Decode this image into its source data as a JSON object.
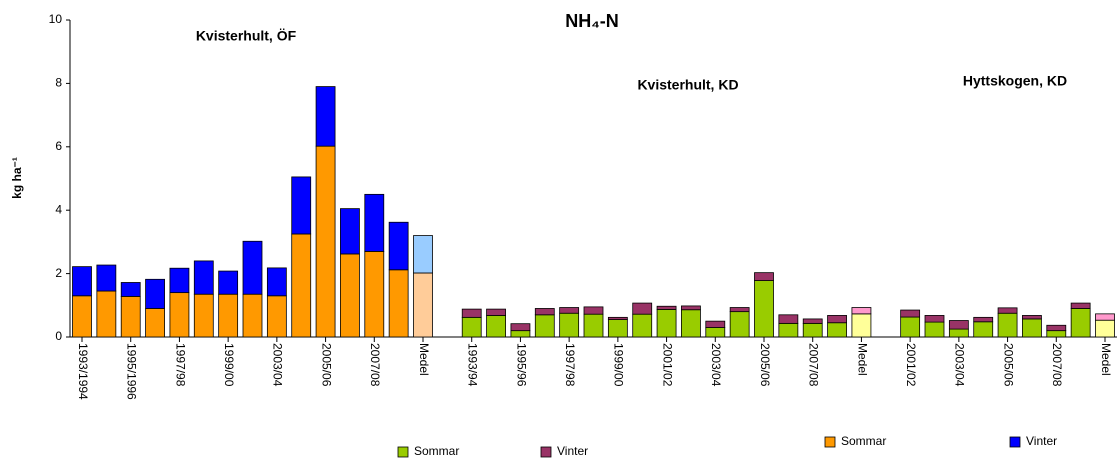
{
  "chart_data": {
    "type": "stacked_bar",
    "title": "NH₄-N",
    "y_label": "kg ha⁻¹",
    "annotations": [
      "Kvisterhult, ÖF",
      "Kvisterhult, KD",
      "Hyttskogen, KD"
    ],
    "categories": [
      "1993/1994",
      null,
      "1995/1996",
      null,
      "1997/98",
      null,
      "1999/00",
      null,
      "2003/04",
      null,
      "2005/06",
      null,
      "2007/08",
      null,
      "Medel",
      null,
      "1993/94",
      null,
      "1995/96",
      null,
      "1997/98",
      null,
      "1999/00",
      null,
      "2001/02",
      null,
      "2003/04",
      null,
      "2005/06",
      null,
      "2007/08",
      null,
      "Medel",
      null,
      "2001/02",
      null,
      "2003/04",
      null,
      "2005/06",
      null,
      "2007/08",
      null,
      "Medel"
    ],
    "series": [
      {
        "name": "Sommar",
        "color": "#99cc00",
        "mean_color": "#ffff99",
        "values": [
          null,
          null,
          null,
          null,
          null,
          null,
          null,
          null,
          null,
          null,
          null,
          null,
          null,
          null,
          null,
          null,
          0.62,
          0.68,
          0.2,
          0.7,
          0.75,
          0.72,
          0.55,
          0.72,
          0.87,
          0.86,
          0.3,
          0.8,
          1.78,
          0.43,
          0.43,
          0.45,
          0.73,
          null,
          0.63,
          0.47,
          0.25,
          0.48,
          0.75,
          0.57,
          0.2,
          0.9,
          0.53
        ]
      },
      {
        "name": "Vinter",
        "color": "#993366",
        "mean_color": "#ff99cc",
        "values": [
          null,
          null,
          null,
          null,
          null,
          null,
          null,
          null,
          null,
          null,
          null,
          null,
          null,
          null,
          null,
          null,
          0.26,
          0.2,
          0.22,
          0.2,
          0.18,
          0.23,
          0.07,
          0.35,
          0.1,
          0.12,
          0.2,
          0.13,
          0.25,
          0.27,
          0.14,
          0.23,
          0.2,
          null,
          0.22,
          0.21,
          0.27,
          0.14,
          0.17,
          0.11,
          0.17,
          0.17,
          0.2
        ]
      },
      {
        "name": "Sommar",
        "color": "#ff9900",
        "mean_color": "#ffcc99",
        "values": [
          1.3,
          1.45,
          1.28,
          0.9,
          1.4,
          1.35,
          1.35,
          1.35,
          1.3,
          3.25,
          6.02,
          2.62,
          2.7,
          2.12,
          2.02,
          null,
          null,
          null,
          null,
          null,
          null,
          null,
          null,
          null,
          null,
          null,
          null,
          null,
          null,
          null,
          null,
          null,
          null,
          null,
          null,
          null,
          null,
          null,
          null,
          null,
          null,
          null,
          null
        ]
      },
      {
        "name": "Vinter",
        "color": "#0000ff",
        "mean_color": "#99ccff",
        "values": [
          0.92,
          0.82,
          0.44,
          0.92,
          0.77,
          1.05,
          0.73,
          1.67,
          0.88,
          1.8,
          1.88,
          1.43,
          1.8,
          1.5,
          1.18,
          null,
          null,
          null,
          null,
          null,
          null,
          null,
          null,
          null,
          null,
          null,
          null,
          null,
          null,
          null,
          null,
          null,
          null,
          null,
          null,
          null,
          null,
          null,
          null,
          null,
          null,
          null,
          null
        ]
      }
    ],
    "ylim": [
      0,
      10
    ],
    "yticks": [
      0,
      2,
      4,
      6,
      8,
      10
    ],
    "grid": false
  }
}
